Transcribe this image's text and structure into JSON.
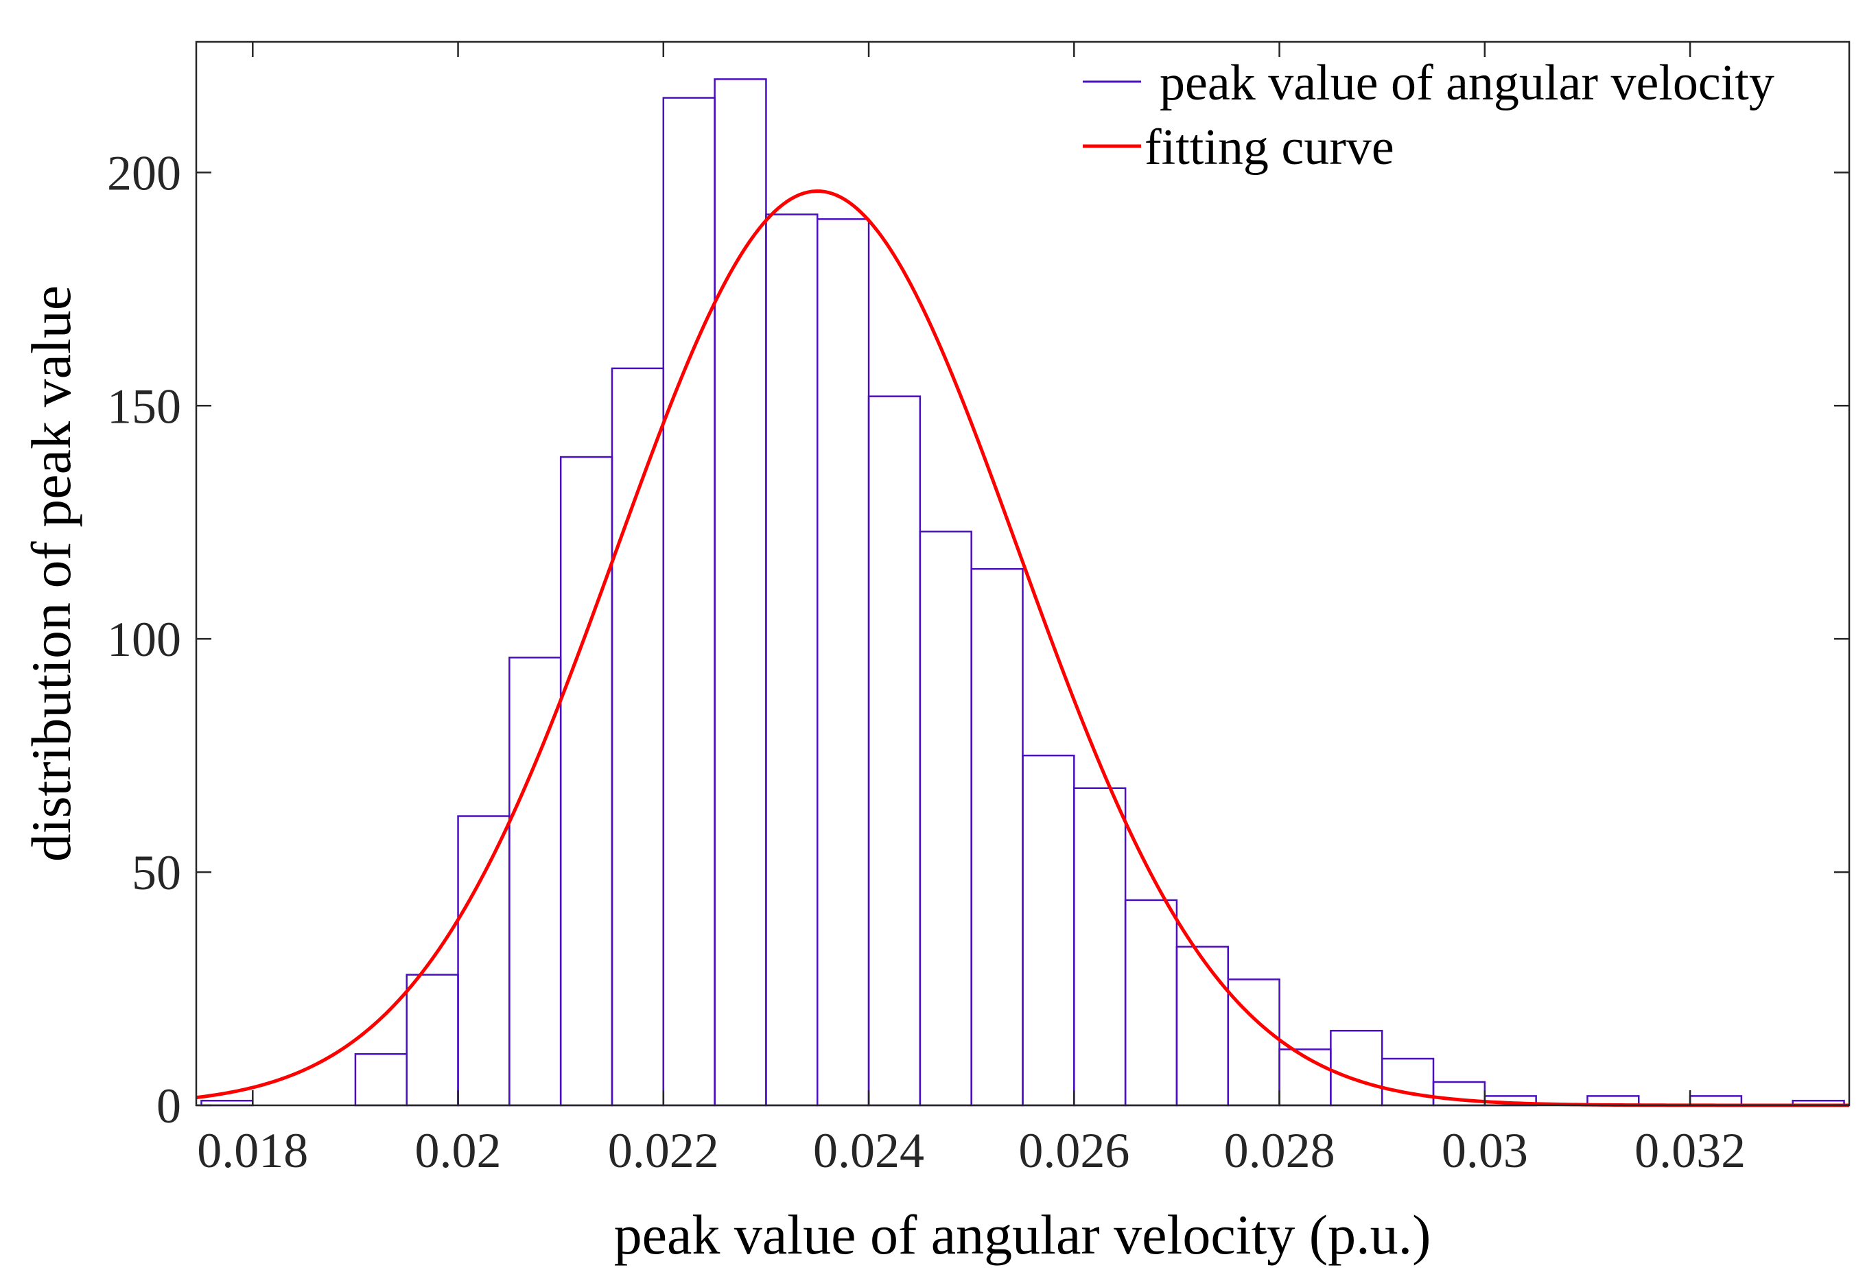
{
  "chart_data": {
    "type": "bar",
    "title": "",
    "xlabel": "peak value of angular velocity (p.u.)",
    "ylabel": "distribution of peak value",
    "xlim": [
      0.01745,
      0.03355
    ],
    "ylim": [
      0,
      228
    ],
    "grid": false,
    "legend_position": "top-right",
    "x_ticks": [
      0.018,
      0.02,
      0.022,
      0.024,
      0.026,
      0.028,
      0.03,
      0.032
    ],
    "x_tick_labels": [
      "0.018",
      "0.02",
      "0.022",
      "0.024",
      "0.026",
      "0.028",
      "0.03",
      "0.032"
    ],
    "y_ticks": [
      0,
      50,
      100,
      150,
      200
    ],
    "y_tick_labels": [
      "0",
      "50",
      "100",
      "150",
      "200"
    ],
    "histogram": {
      "name": "peak value of angular velocity",
      "color": "#4b0fbf",
      "bin_start": 0.0175,
      "bin_width": 0.0005,
      "counts": [
        1,
        0,
        0,
        11,
        28,
        62,
        96,
        139,
        158,
        216,
        220,
        191,
        190,
        152,
        123,
        115,
        75,
        68,
        44,
        34,
        27,
        12,
        16,
        10,
        5,
        2,
        0,
        2,
        0,
        2,
        0,
        1
      ]
    },
    "fit": {
      "name": "fitting curve",
      "color": "#ff0000",
      "type": "normal",
      "mean": 0.0235,
      "std": 0.00196,
      "peak": 196
    }
  }
}
